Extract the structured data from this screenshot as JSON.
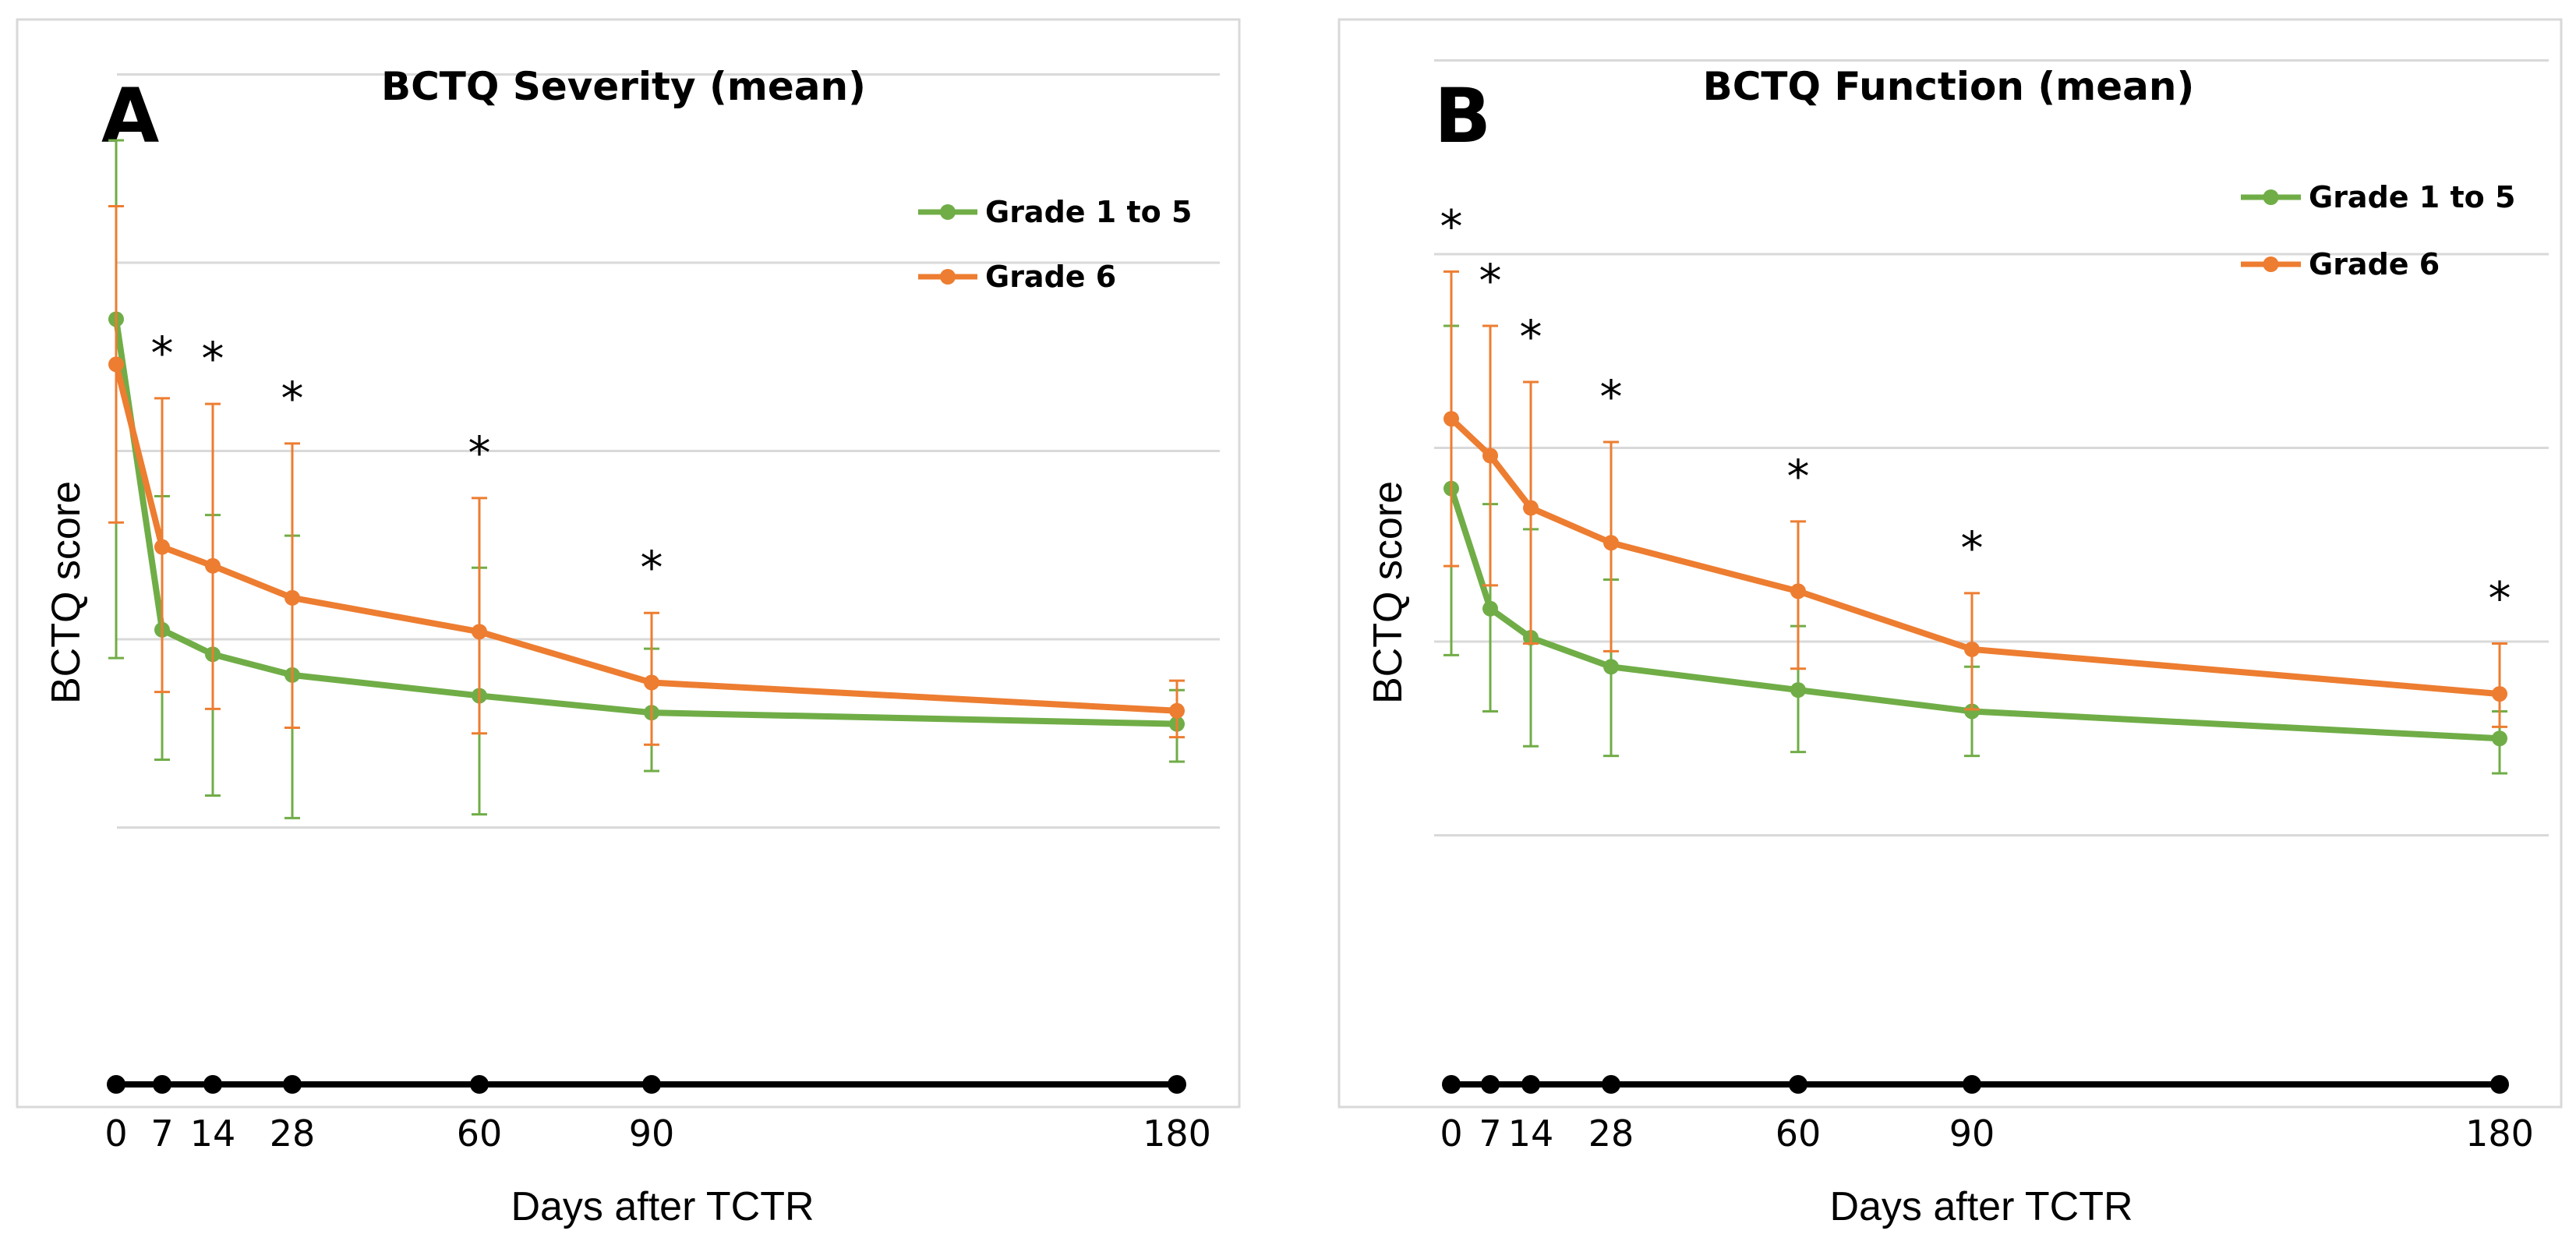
{
  "colors": {
    "green": "#70ad47",
    "orange": "#ed7d31",
    "axis": "#000000",
    "grid": "#d9d9d9"
  },
  "chart_data": [
    {
      "panel_letter": "A",
      "type": "line",
      "title": "BCTQ Severity (mean)",
      "xlabel": "Days after TCTR",
      "ylabel": "BCTQ score",
      "x": [
        0,
        7,
        14,
        28,
        60,
        90,
        180
      ],
      "x_tick_labels": [
        "0",
        "7",
        "14",
        "28",
        "60",
        "90",
        "180"
      ],
      "ylim": [
        0,
        5
      ],
      "grid": true,
      "legend_position": "top-right",
      "series": [
        {
          "name": "Grade 1 to 5",
          "color": "#70ad47",
          "values": [
            3.7,
            2.05,
            1.92,
            1.81,
            1.7,
            1.61,
            1.55
          ],
          "err_low": [
            1.9,
            1.36,
            1.17,
            1.05,
            1.07,
            1.3,
            1.35
          ],
          "err_high": [
            4.65,
            2.76,
            2.66,
            2.55,
            2.38,
            1.95,
            1.73
          ]
        },
        {
          "name": "Grade 6",
          "color": "#ed7d31",
          "values": [
            3.46,
            2.49,
            2.39,
            2.22,
            2.04,
            1.77,
            1.62
          ],
          "err_low": [
            2.62,
            1.72,
            1.63,
            1.53,
            1.5,
            1.44,
            1.48
          ],
          "err_high": [
            4.3,
            3.28,
            3.25,
            3.04,
            2.75,
            2.14,
            1.78
          ]
        }
      ],
      "significance_markers": [
        {
          "x": 7,
          "label": "*"
        },
        {
          "x": 14,
          "label": "*"
        },
        {
          "x": 28,
          "label": "*"
        },
        {
          "x": 60,
          "label": "*"
        },
        {
          "x": 90,
          "label": "*"
        }
      ]
    },
    {
      "panel_letter": "B",
      "type": "line",
      "title": "BCTQ Function (mean)",
      "xlabel": "Days after TCTR",
      "ylabel": "BCTQ score",
      "x": [
        0,
        7,
        14,
        28,
        60,
        90,
        180
      ],
      "x_tick_labels": [
        "0",
        "7",
        "14",
        "28",
        "60",
        "90",
        "180"
      ],
      "ylim": [
        0,
        5
      ],
      "grid": true,
      "legend_position": "top-right",
      "series": [
        {
          "name": "Grade 1 to 5",
          "color": "#70ad47",
          "values": [
            2.79,
            2.17,
            2.02,
            1.87,
            1.75,
            1.64,
            1.5
          ],
          "err_low": [
            1.93,
            1.64,
            1.46,
            1.41,
            1.43,
            1.41,
            1.32
          ],
          "err_high": [
            3.63,
            2.71,
            2.58,
            2.32,
            2.08,
            1.87,
            1.64
          ]
        },
        {
          "name": "Grade 6",
          "color": "#ed7d31",
          "values": [
            3.15,
            2.96,
            2.69,
            2.51,
            2.26,
            1.96,
            1.73
          ],
          "err_low": [
            2.39,
            2.29,
            1.99,
            1.95,
            1.86,
            1.65,
            1.56
          ],
          "err_high": [
            3.91,
            3.63,
            3.34,
            3.03,
            2.62,
            2.25,
            1.99
          ]
        }
      ],
      "significance_markers": [
        {
          "x": 0,
          "label": "*"
        },
        {
          "x": 7,
          "label": "*"
        },
        {
          "x": 14,
          "label": "*"
        },
        {
          "x": 28,
          "label": "*"
        },
        {
          "x": 60,
          "label": "*"
        },
        {
          "x": 90,
          "label": "*"
        },
        {
          "x": 180,
          "label": "*"
        }
      ]
    }
  ]
}
